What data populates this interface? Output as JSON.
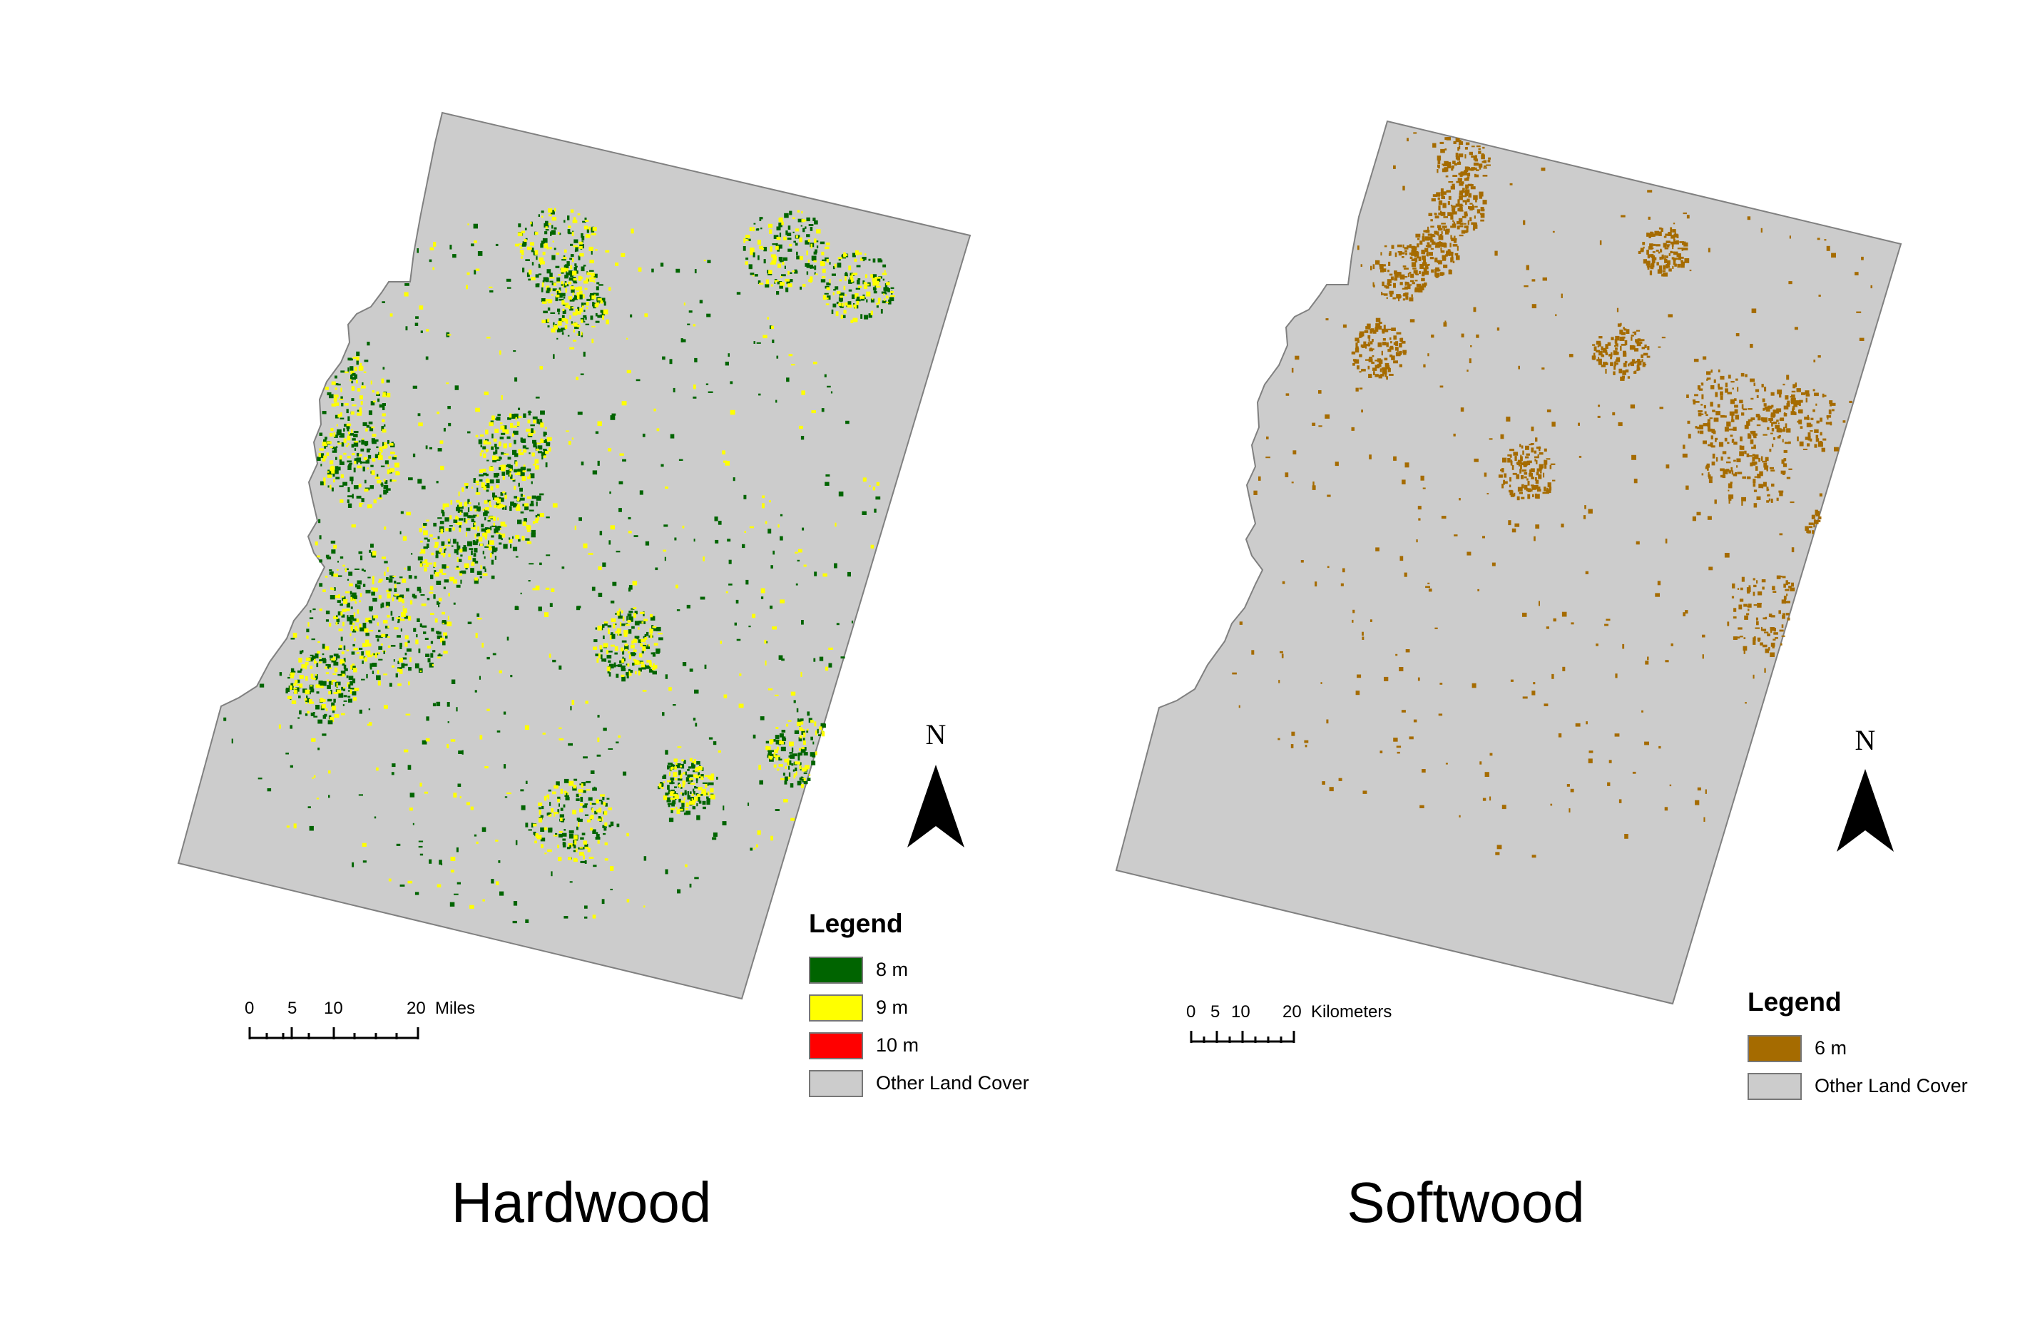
{
  "maps": [
    {
      "title": "Hardwood",
      "legend_title": "Legend",
      "legend": [
        {
          "label": "8 m",
          "color": "#006400"
        },
        {
          "label": "9 m",
          "color": "#ffff00"
        },
        {
          "label": "10 m",
          "color": "#ff0000"
        },
        {
          "label": "Other Land Cover",
          "color": "#cccccc"
        }
      ],
      "scale": {
        "ticks": [
          "0",
          "5",
          "10",
          "20"
        ],
        "unit": "Miles"
      },
      "north_label": "N"
    },
    {
      "title": "Softwood",
      "legend_title": "Legend",
      "legend": [
        {
          "label": "6 m",
          "color": "#a56b00"
        },
        {
          "label": "Other Land Cover",
          "color": "#cccccc"
        }
      ],
      "scale": {
        "ticks": [
          "0",
          "5",
          "10",
          "20"
        ],
        "unit": "Kilometers"
      },
      "north_label": "N"
    }
  ],
  "colors": {
    "land": "#cccccc",
    "land_outline": "#808080",
    "hardwood_8m": "#006400",
    "hardwood_9m": "#ffff00",
    "softwood_6m": "#a56b00"
  }
}
